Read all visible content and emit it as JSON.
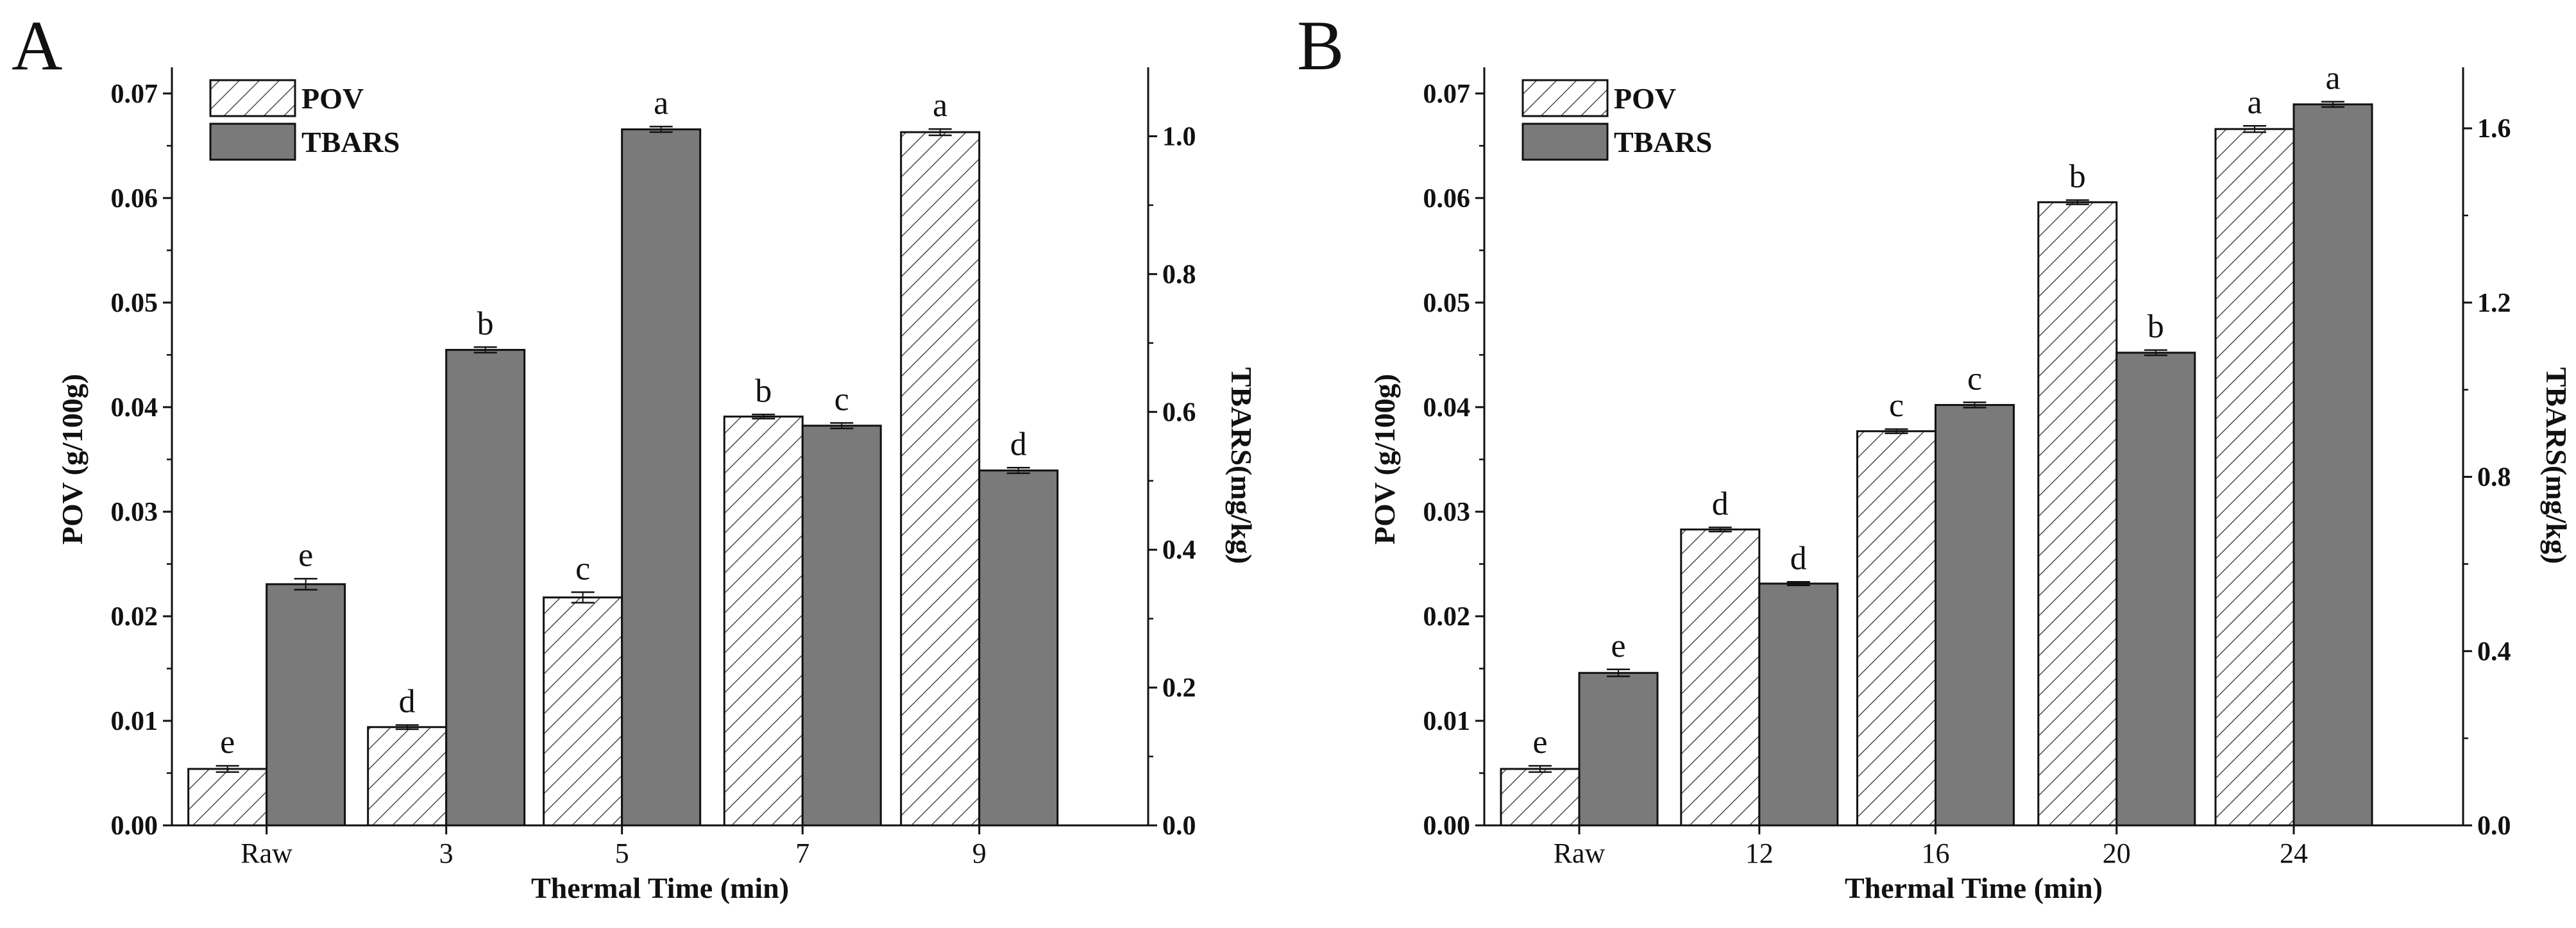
{
  "chart_data": [
    {
      "panel_label": "A",
      "type": "bar",
      "xlabel": "Thermal Time (min)",
      "categories": [
        "Raw",
        "3",
        "5",
        "7",
        "9"
      ],
      "left_axis": {
        "label": "POV (g/100g)",
        "ylim": [
          0,
          0.0725
        ],
        "ticks": [
          0.0,
          0.01,
          0.02,
          0.03,
          0.04,
          0.05,
          0.06,
          0.07
        ],
        "tick_labels": [
          "0.00",
          "0.01",
          "0.02",
          "0.03",
          "0.04",
          "0.05",
          "0.06",
          "0.07"
        ]
      },
      "right_axis": {
        "label": "TBARS(mg/kg)",
        "ylim": [
          0,
          1.1
        ],
        "ticks": [
          0.0,
          0.2,
          0.4,
          0.6,
          0.8,
          1.0
        ],
        "tick_labels": [
          "0.0",
          "0.2",
          "0.4",
          "0.6",
          "0.8",
          "1.0"
        ]
      },
      "series": [
        {
          "name": "POV",
          "axis": "left",
          "style": "hatched",
          "values": [
            0.0054,
            0.0094,
            0.0218,
            0.0391,
            0.0663
          ],
          "errors": [
            0.0003,
            0.0002,
            0.0005,
            0.0002,
            0.0003
          ],
          "letters": [
            "e",
            "d",
            "c",
            "b",
            "a"
          ]
        },
        {
          "name": "TBARS",
          "axis": "right",
          "style": "solid",
          "color": "#7a7a7a",
          "values": [
            0.35,
            0.69,
            1.01,
            0.58,
            0.515
          ],
          "errors": [
            0.008,
            0.004,
            0.004,
            0.004,
            0.004
          ],
          "letters": [
            "e",
            "b",
            "a",
            "c",
            "d"
          ]
        }
      ],
      "legend": [
        "POV",
        "TBARS"
      ],
      "legend_position": "top-left"
    },
    {
      "panel_label": "B",
      "type": "bar",
      "xlabel": "Thermal Time (min)",
      "categories": [
        "Raw",
        "12",
        "16",
        "20",
        "24"
      ],
      "left_axis": {
        "label": "POV (g/100g)",
        "ylim": [
          0,
          0.0725
        ],
        "ticks": [
          0.0,
          0.01,
          0.02,
          0.03,
          0.04,
          0.05,
          0.06,
          0.07
        ],
        "tick_labels": [
          "0.00",
          "0.01",
          "0.02",
          "0.03",
          "0.04",
          "0.05",
          "0.06",
          "0.07"
        ]
      },
      "right_axis": {
        "label": "TBARS(mg/kg)",
        "ylim": [
          0,
          1.74
        ],
        "ticks": [
          0.0,
          0.4,
          0.8,
          1.2,
          1.6
        ],
        "tick_labels": [
          "0.0",
          "0.4",
          "0.8",
          "1.2",
          "1.6"
        ]
      },
      "series": [
        {
          "name": "POV",
          "axis": "left",
          "style": "hatched",
          "values": [
            0.0054,
            0.0283,
            0.0377,
            0.0596,
            0.0666
          ],
          "errors": [
            0.0003,
            0.0002,
            0.0002,
            0.0002,
            0.0003
          ],
          "letters": [
            "e",
            "d",
            "c",
            "b",
            "a"
          ]
        },
        {
          "name": "TBARS",
          "axis": "right",
          "style": "solid",
          "color": "#7a7a7a",
          "values": [
            0.35,
            0.555,
            0.965,
            1.085,
            1.655
          ],
          "errors": [
            0.008,
            0.004,
            0.006,
            0.006,
            0.006
          ],
          "letters": [
            "e",
            "d",
            "c",
            "b",
            "a"
          ]
        }
      ],
      "legend": [
        "POV",
        "TBARS"
      ],
      "legend_position": "top-left"
    }
  ]
}
